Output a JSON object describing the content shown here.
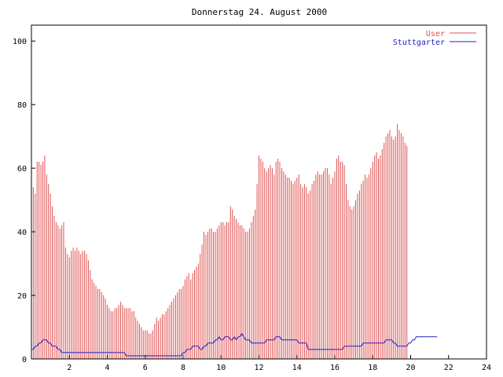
{
  "chart_data": {
    "type": "bar",
    "title": "Donnerstag 24. August 2000",
    "xlabel": "",
    "ylabel": "",
    "xlim": [
      0,
      24
    ],
    "ylim": [
      0,
      105
    ],
    "xticks": [
      "2",
      "4",
      "6",
      "8",
      "10",
      "12",
      "14",
      "16",
      "18",
      "20",
      "22",
      "24"
    ],
    "yticks": [
      "0",
      "20",
      "40",
      "60",
      "80",
      "100"
    ],
    "grid": false,
    "legend_position": "top-right",
    "colors": {
      "user": "#e05050",
      "stuttgarter": "#2020c0",
      "frame": "#000000"
    },
    "series": [
      {
        "name": "User",
        "style": "impulses",
        "x_start": 0,
        "x_step": 0.1,
        "values": [
          55,
          54,
          52,
          62,
          62,
          61,
          62,
          64,
          58,
          55,
          52,
          48,
          45,
          43,
          42,
          41,
          42,
          43,
          35,
          33,
          32,
          34,
          35,
          34,
          35,
          34,
          33,
          34,
          34,
          33,
          31,
          28,
          25,
          24,
          23,
          22,
          22,
          21,
          20,
          19,
          17,
          16,
          15,
          15,
          16,
          16,
          17,
          18,
          17,
          16,
          16,
          16,
          16,
          15,
          15,
          13,
          12,
          11,
          10,
          9,
          9,
          9,
          8,
          8,
          9,
          11,
          13,
          12,
          13,
          14,
          14,
          15,
          16,
          17,
          18,
          19,
          20,
          21,
          22,
          22,
          23,
          25,
          26,
          27,
          25,
          27,
          28,
          29,
          30,
          33,
          36,
          40,
          39,
          40,
          41,
          41,
          40,
          40,
          41,
          42,
          43,
          43,
          42,
          43,
          43,
          48,
          47,
          45,
          44,
          43,
          42,
          42,
          41,
          40,
          40,
          41,
          43,
          45,
          47,
          55,
          64,
          63,
          62,
          60,
          59,
          60,
          61,
          60,
          58,
          62,
          63,
          62,
          60,
          59,
          58,
          57,
          57,
          56,
          55,
          56,
          57,
          58,
          55,
          54,
          55,
          54,
          52,
          53,
          55,
          56,
          58,
          59,
          58,
          58,
          59,
          60,
          60,
          58,
          55,
          57,
          59,
          63,
          64,
          62,
          62,
          61,
          55,
          50,
          48,
          47,
          48,
          50,
          52,
          53,
          55,
          56,
          58,
          57,
          58,
          60,
          62,
          64,
          65,
          63,
          64,
          66,
          68,
          70,
          71,
          72,
          70,
          69,
          70,
          74,
          72,
          71,
          70,
          68,
          67
        ]
      },
      {
        "name": "Stuttgarter",
        "style": "line",
        "x_start": 0,
        "x_step": 0.1,
        "values": [
          3,
          3,
          4,
          4,
          5,
          5,
          6,
          6,
          6,
          5,
          5,
          4,
          4,
          4,
          3,
          3,
          2,
          2,
          2,
          2,
          2,
          2,
          2,
          2,
          2,
          2,
          2,
          2,
          2,
          2,
          2,
          2,
          2,
          2,
          2,
          2,
          2,
          2,
          2,
          2,
          2,
          2,
          2,
          2,
          2,
          2,
          2,
          2,
          2,
          2,
          1,
          1,
          1,
          1,
          1,
          1,
          1,
          1,
          1,
          1,
          1,
          1,
          1,
          1,
          1,
          1,
          1,
          1,
          1,
          1,
          1,
          1,
          1,
          1,
          1,
          1,
          1,
          1,
          1,
          1,
          2,
          2,
          3,
          3,
          3,
          4,
          4,
          4,
          4,
          3,
          3,
          4,
          4,
          5,
          5,
          5,
          5,
          6,
          6,
          7,
          6,
          6,
          7,
          7,
          7,
          6,
          6,
          7,
          6,
          7,
          7,
          8,
          7,
          6,
          6,
          6,
          5,
          5,
          5,
          5,
          5,
          5,
          5,
          5,
          6,
          6,
          6,
          6,
          6,
          7,
          7,
          7,
          6,
          6,
          6,
          6,
          6,
          6,
          6,
          6,
          6,
          5,
          5,
          5,
          5,
          5,
          3,
          3,
          3,
          3,
          3,
          3,
          3,
          3,
          3,
          3,
          3,
          3,
          3,
          3,
          3,
          3,
          3,
          3,
          3,
          4,
          4,
          4,
          4,
          4,
          4,
          4,
          4,
          4,
          4,
          5,
          5,
          5,
          5,
          5,
          5,
          5,
          5,
          5,
          5,
          5,
          5,
          6,
          6,
          6,
          6,
          5,
          5,
          4,
          4,
          4,
          4,
          4,
          4,
          5,
          5,
          6,
          6,
          7,
          7,
          7,
          7,
          7,
          7,
          7,
          7,
          7,
          7,
          7,
          7
        ]
      }
    ]
  }
}
